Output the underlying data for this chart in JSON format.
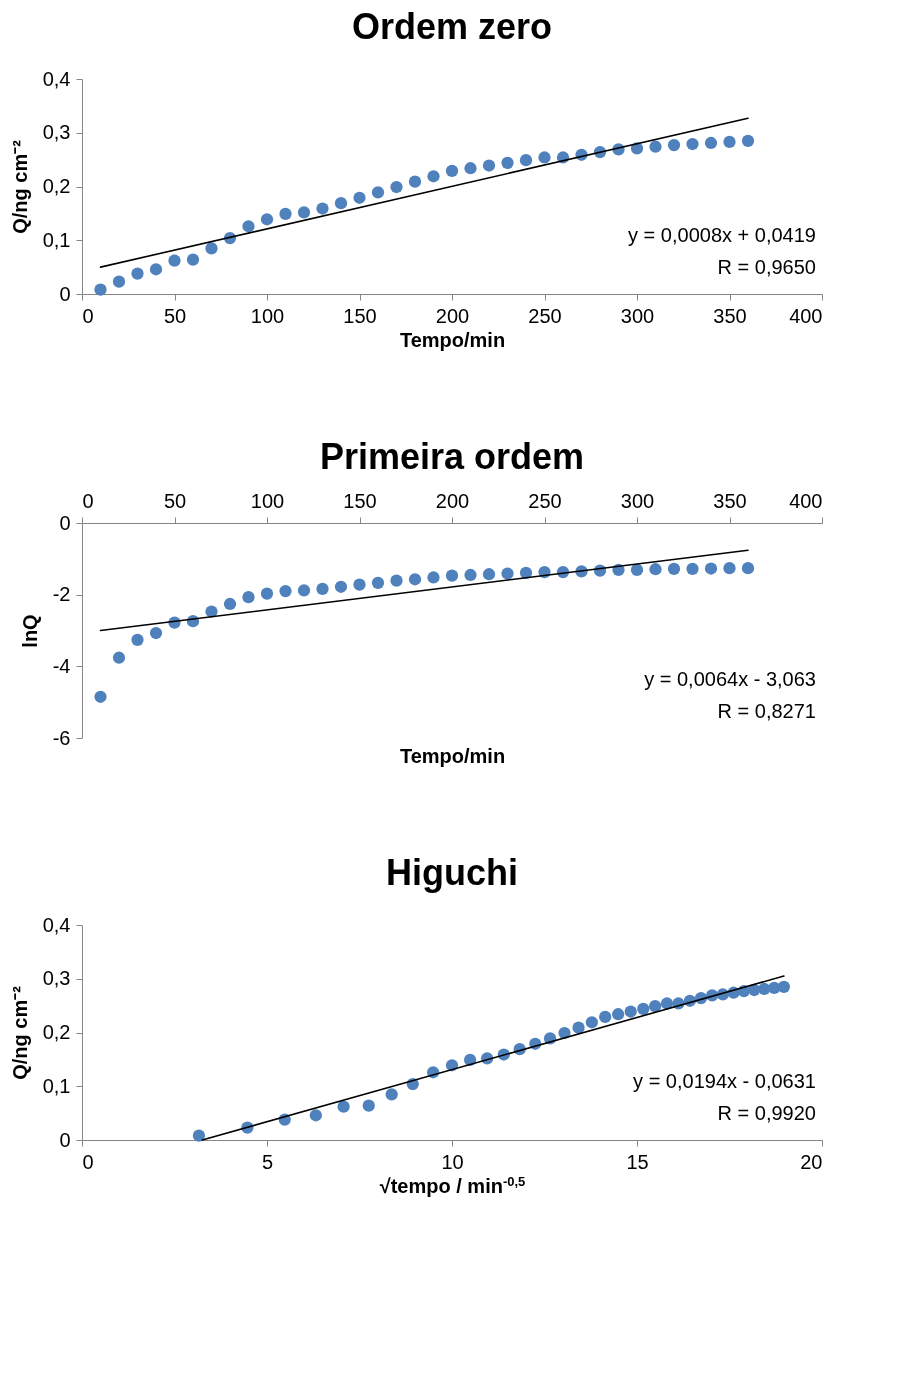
{
  "chart_data": [
    {
      "type": "scatter",
      "title": "Ordem zero",
      "xlabel": "Tempo/min",
      "ylabel": "Q/ng cm⁻²",
      "grid": false,
      "xlim": [
        0,
        400
      ],
      "xticks": [
        0,
        50,
        100,
        150,
        200,
        250,
        300,
        350,
        400
      ],
      "ylim": [
        0,
        0.4
      ],
      "yticks": [
        {
          "value": 0,
          "label": "0"
        },
        {
          "value": 0.1,
          "label": "0,1"
        },
        {
          "value": 0.2,
          "label": "0,2"
        },
        {
          "value": 0.3,
          "label": "0,3"
        },
        {
          "value": 0.4,
          "label": "0,4"
        }
      ],
      "annotations": [
        "y = 0,0008x + 0,0419",
        "R = 0,9650"
      ],
      "series": [
        {
          "marker": "circle",
          "color": "#4f81bd",
          "x": [
            10,
            20,
            30,
            40,
            50,
            60,
            70,
            80,
            90,
            100,
            110,
            120,
            130,
            140,
            150,
            160,
            170,
            180,
            190,
            200,
            210,
            220,
            230,
            240,
            250,
            260,
            270,
            280,
            290,
            300,
            310,
            320,
            330,
            340,
            350,
            360
          ],
          "values": [
            0.008,
            0.023,
            0.038,
            0.046,
            0.062,
            0.064,
            0.085,
            0.104,
            0.126,
            0.139,
            0.149,
            0.152,
            0.159,
            0.169,
            0.179,
            0.189,
            0.199,
            0.209,
            0.219,
            0.229,
            0.234,
            0.239,
            0.244,
            0.249,
            0.254,
            0.254,
            0.259,
            0.264,
            0.269,
            0.271,
            0.274,
            0.277,
            0.279,
            0.281,
            0.283,
            0.285
          ]
        },
        {
          "type": "line",
          "color": "#000000",
          "x": [
            10,
            360
          ],
          "values": [
            0.05,
            0.327
          ]
        }
      ]
    },
    {
      "type": "scatter",
      "title": "Primeira ordem",
      "xlabel": "Tempo/min",
      "ylabel": "lnQ",
      "grid": false,
      "xlim": [
        0,
        400
      ],
      "xticks": [
        0,
        50,
        100,
        150,
        200,
        250,
        300,
        350,
        400
      ],
      "ylim": [
        -6,
        0
      ],
      "yticks": [
        0,
        -2,
        -4,
        -6
      ],
      "annotations": [
        "y = 0,0064x - 3,063",
        "R = 0,8271"
      ],
      "series": [
        {
          "marker": "circle",
          "color": "#4f81bd",
          "x": [
            10,
            20,
            30,
            40,
            50,
            60,
            70,
            80,
            90,
            100,
            110,
            120,
            130,
            140,
            150,
            160,
            170,
            180,
            190,
            200,
            210,
            220,
            230,
            240,
            250,
            260,
            270,
            280,
            290,
            300,
            310,
            320,
            330,
            340,
            350,
            360
          ],
          "values": [
            -4.85,
            -3.76,
            -3.26,
            -3.07,
            -2.78,
            -2.74,
            -2.47,
            -2.26,
            -2.07,
            -1.97,
            -1.9,
            -1.88,
            -1.84,
            -1.78,
            -1.72,
            -1.67,
            -1.61,
            -1.57,
            -1.52,
            -1.47,
            -1.45,
            -1.43,
            -1.41,
            -1.39,
            -1.37,
            -1.37,
            -1.35,
            -1.33,
            -1.31,
            -1.31,
            -1.29,
            -1.28,
            -1.28,
            -1.27,
            -1.26,
            -1.26
          ]
        },
        {
          "type": "line",
          "color": "#000000",
          "x": [
            10,
            360
          ],
          "values": [
            -3.0,
            -0.76
          ]
        }
      ]
    },
    {
      "type": "scatter",
      "title": "Higuchi",
      "xlabel": "√tempo / min$^{-0,5}$",
      "ylabel": "Q/ng cm⁻²",
      "grid": false,
      "xlim": [
        0,
        20
      ],
      "xticks": [
        0,
        5,
        10,
        15,
        20
      ],
      "ylim": [
        0,
        0.4
      ],
      "yticks": [
        {
          "value": 0,
          "label": "0"
        },
        {
          "value": 0.1,
          "label": "0,1"
        },
        {
          "value": 0.2,
          "label": "0,2"
        },
        {
          "value": 0.3,
          "label": "0,3"
        },
        {
          "value": 0.4,
          "label": "0,4"
        }
      ],
      "annotations": [
        "y = 0,0194x - 0,0631",
        "R = 0,9920"
      ],
      "series": [
        {
          "marker": "circle",
          "color": "#4f81bd",
          "x": [
            3.16,
            4.47,
            5.48,
            6.32,
            7.07,
            7.75,
            8.37,
            8.94,
            9.49,
            10,
            10.49,
            10.95,
            11.4,
            11.83,
            12.25,
            12.65,
            13.04,
            13.42,
            13.78,
            14.14,
            14.49,
            14.83,
            15.17,
            15.49,
            15.81,
            16.12,
            16.43,
            16.73,
            17.03,
            17.32,
            17.61,
            17.89,
            18.17,
            18.44,
            18.71,
            18.97
          ],
          "values": [
            0.008,
            0.023,
            0.038,
            0.046,
            0.062,
            0.064,
            0.085,
            0.104,
            0.126,
            0.139,
            0.149,
            0.152,
            0.159,
            0.169,
            0.179,
            0.189,
            0.199,
            0.209,
            0.219,
            0.229,
            0.234,
            0.239,
            0.244,
            0.249,
            0.254,
            0.254,
            0.259,
            0.264,
            0.269,
            0.271,
            0.274,
            0.277,
            0.279,
            0.281,
            0.283,
            0.285
          ]
        },
        {
          "type": "line",
          "color": "#000000",
          "x": [
            3.25,
            18.97
          ],
          "values": [
            0,
            0.305
          ]
        }
      ]
    }
  ]
}
